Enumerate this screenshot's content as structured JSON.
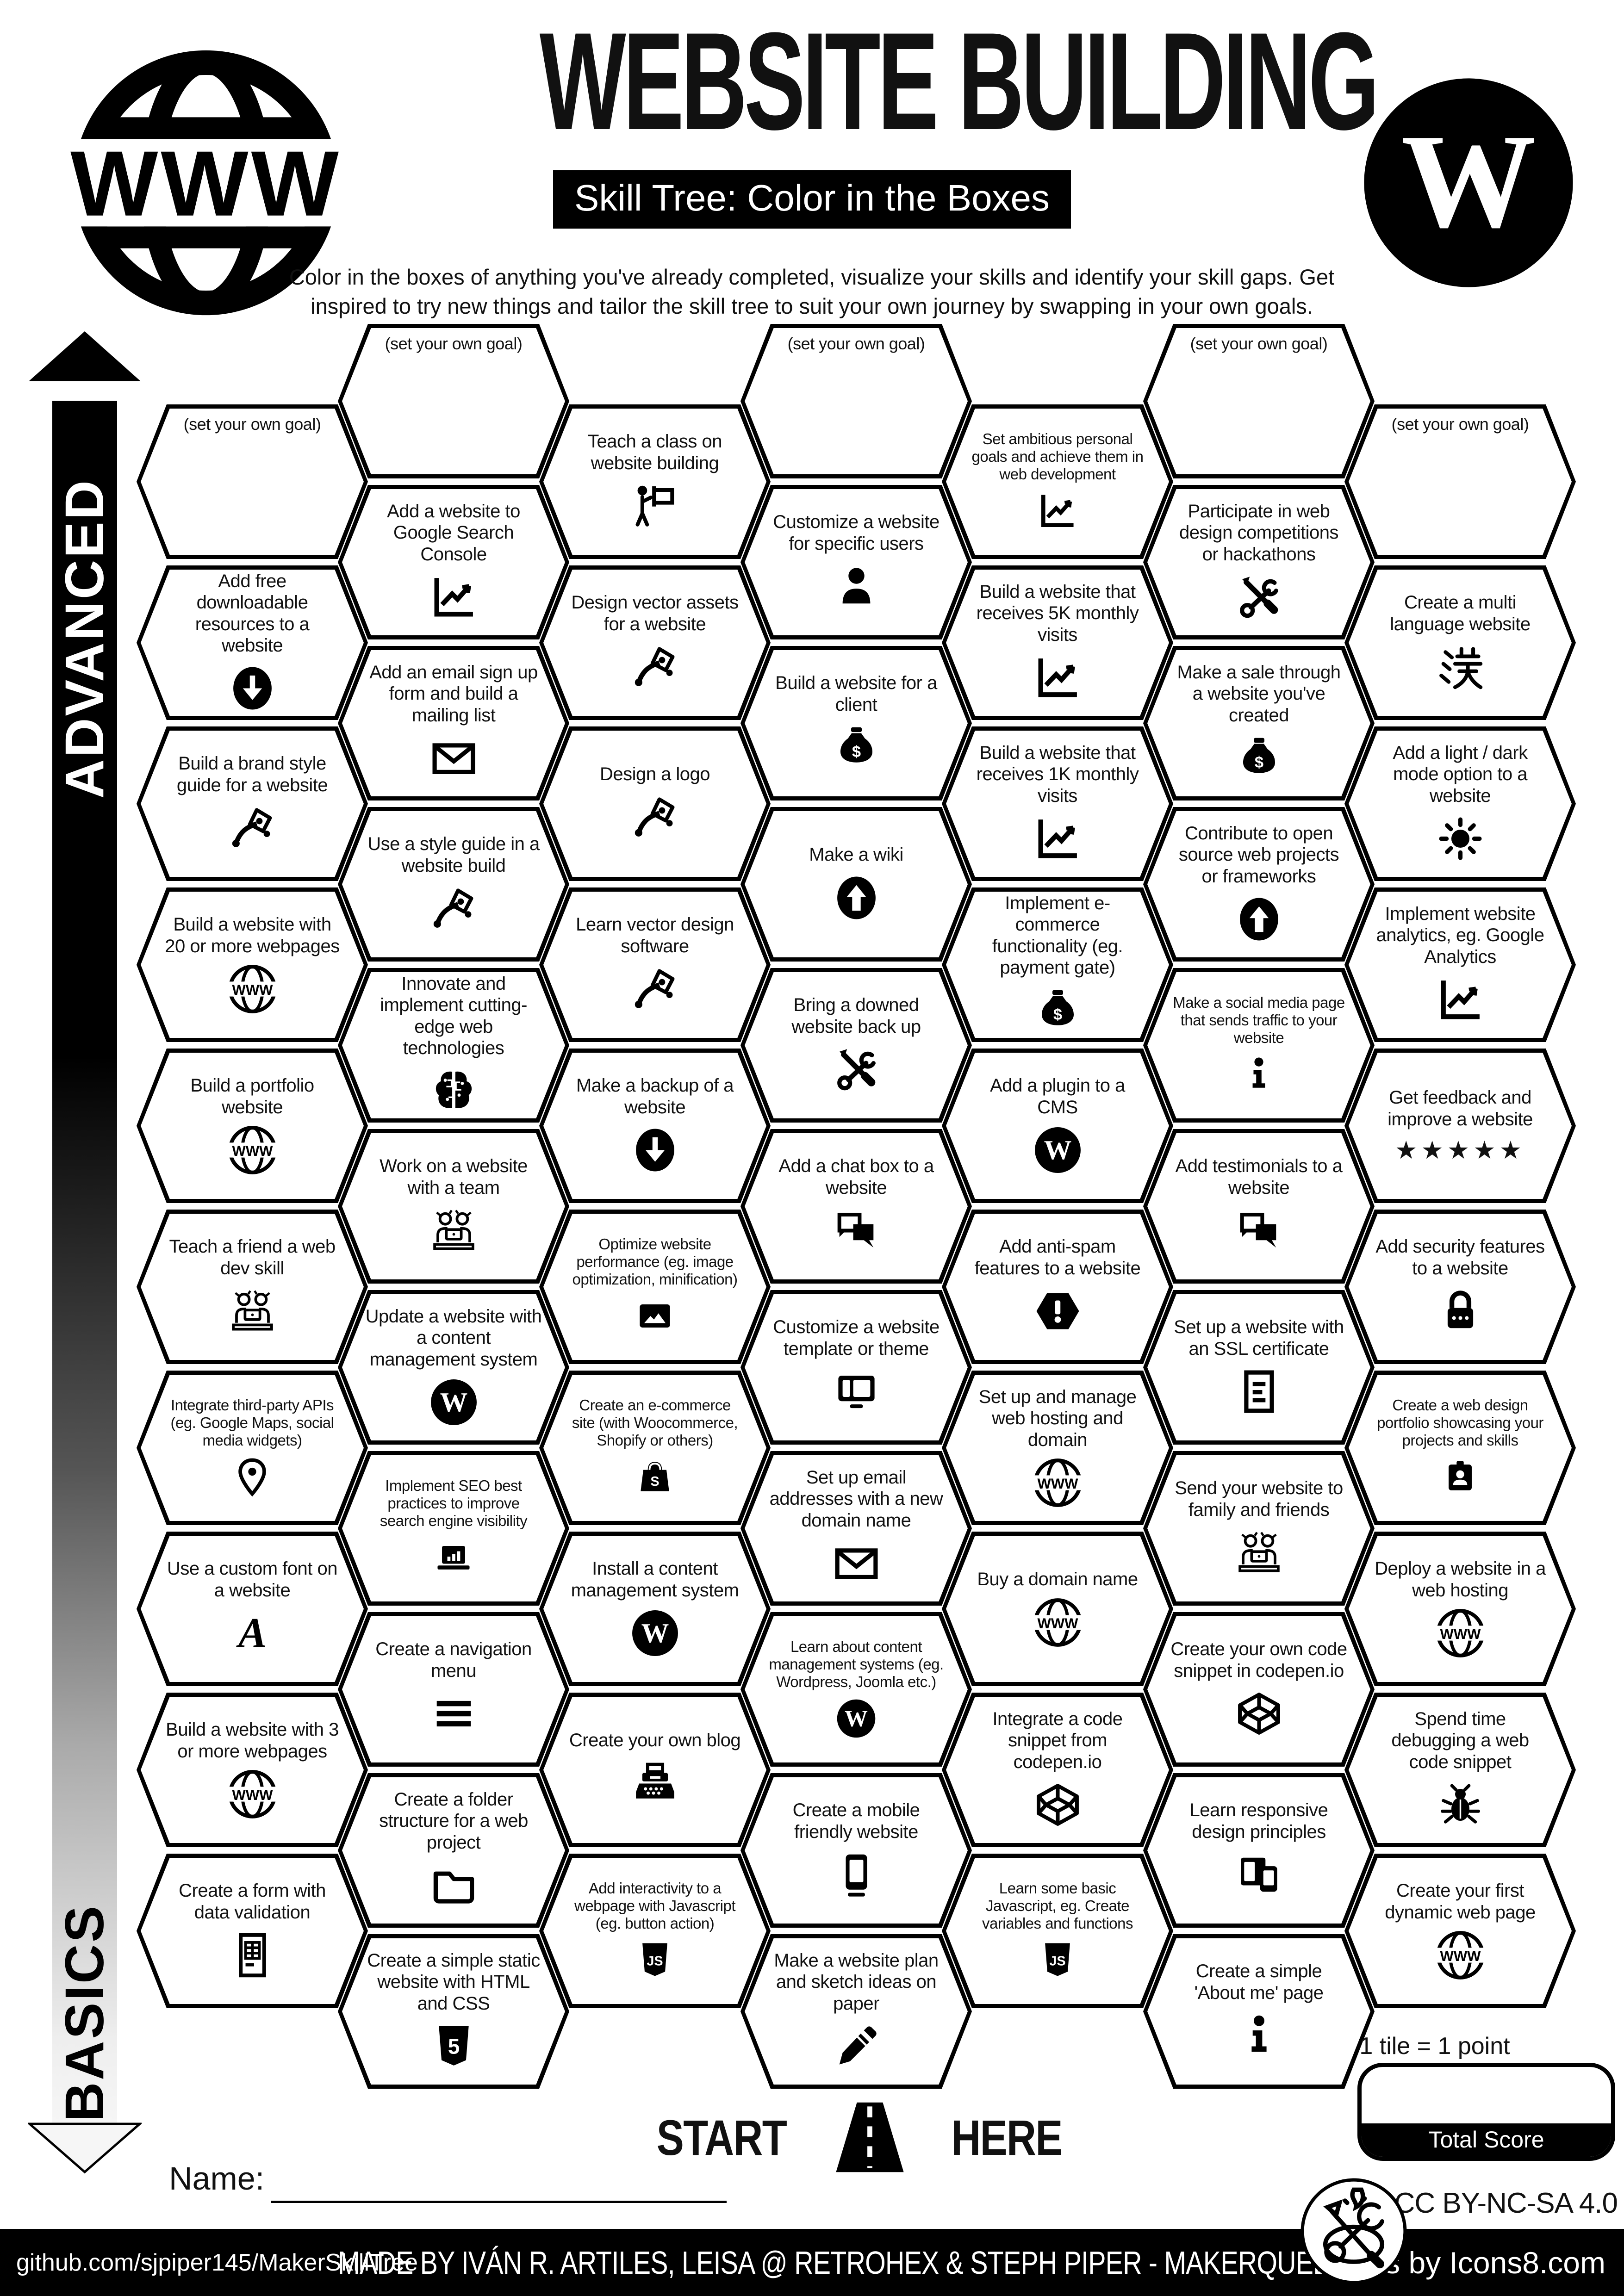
{
  "header": {
    "title": "WEBSITE BUILDING",
    "subtitle": "Skill Tree: Color in the Boxes",
    "description": "Color in the boxes of anything you've already completed, visualize your skills and identify your skill gaps.  Get inspired to try new things and tailor the skill tree to suit your own journey by swapping in your own goals.",
    "logo_left": "www-globe-logo",
    "logo_right": "wordpress-logo"
  },
  "axis": {
    "top": "ADVANCED",
    "bottom": "BASICS"
  },
  "start": {
    "left": "START",
    "right": "HERE"
  },
  "name_label": "Name:",
  "legend": {
    "tile_points": "1 tile = 1 point",
    "total_score": "Total Score"
  },
  "license": "CC BY-NC-SA 4.0",
  "footer": {
    "left": "github.com/sjpiper145/MakerSkillTree",
    "center": "MADE BY IVÁN R. ARTILES, LEISA @ RETROHEX  & STEPH PIPER  -  MAKERQUEEN AU",
    "right": "Icons by Icons8.com"
  },
  "hexes": [
    {
      "c": 0,
      "r": 0,
      "label": "(set your own goal)",
      "icon": "goal"
    },
    {
      "c": 0,
      "r": 1,
      "label": "Add free downloadable resources to a website",
      "icon": "download"
    },
    {
      "c": 0,
      "r": 2,
      "label": "Build a brand style guide for a website",
      "icon": "vector"
    },
    {
      "c": 0,
      "r": 3,
      "label": "Build a website with 20 or more webpages",
      "icon": "www"
    },
    {
      "c": 0,
      "r": 4,
      "label": "Build a portfolio website",
      "icon": "www"
    },
    {
      "c": 0,
      "r": 5,
      "label": "Teach a friend a web dev skill",
      "icon": "people"
    },
    {
      "c": 0,
      "r": 6,
      "label": "Integrate third-party APIs (eg. Google Maps, social media widgets)",
      "icon": "pin"
    },
    {
      "c": 0,
      "r": 7,
      "label": "Use a custom font on a website",
      "icon": "font"
    },
    {
      "c": 0,
      "r": 8,
      "label": "Build a website with 3 or more webpages",
      "icon": "www"
    },
    {
      "c": 0,
      "r": 9,
      "label": "Create a form with data validation",
      "icon": "form"
    },
    {
      "c": 1,
      "r": 0,
      "label": "(set your own goal)",
      "icon": "goal"
    },
    {
      "c": 1,
      "r": 1,
      "label": "Add a website to Google Search Console",
      "icon": "chart"
    },
    {
      "c": 1,
      "r": 2,
      "label": "Add an email sign up form and build a mailing list",
      "icon": "envelope"
    },
    {
      "c": 1,
      "r": 3,
      "label": "Use a style guide in a website build",
      "icon": "vector"
    },
    {
      "c": 1,
      "r": 4,
      "label": "Innovate and implement cutting-edge web technologies",
      "icon": "brain"
    },
    {
      "c": 1,
      "r": 5,
      "label": "Work on a website with a team",
      "icon": "people"
    },
    {
      "c": 1,
      "r": 6,
      "label": "Update a website with a content management system",
      "icon": "wordpress"
    },
    {
      "c": 1,
      "r": 7,
      "label": "Implement SEO best practices to improve search engine visibility",
      "icon": "laptopchart"
    },
    {
      "c": 1,
      "r": 8,
      "label": "Create a navigation menu",
      "icon": "menu"
    },
    {
      "c": 1,
      "r": 9,
      "label": "Create a folder structure for a web project",
      "icon": "folder"
    },
    {
      "c": 1,
      "r": 10,
      "label": "Create a simple static website with HTML and CSS",
      "icon": "html5"
    },
    {
      "c": 2,
      "r": 0,
      "label": "Teach a class on website building",
      "icon": "presenter"
    },
    {
      "c": 2,
      "r": 1,
      "label": "Design vector assets for a website",
      "icon": "vector"
    },
    {
      "c": 2,
      "r": 2,
      "label": "Design a logo",
      "icon": "vector"
    },
    {
      "c": 2,
      "r": 3,
      "label": "Learn vector design software",
      "icon": "vector"
    },
    {
      "c": 2,
      "r": 4,
      "label": "Make a backup of a website",
      "icon": "download"
    },
    {
      "c": 2,
      "r": 5,
      "label": "Optimize website performance (eg. image optimization, minification)",
      "icon": "image"
    },
    {
      "c": 2,
      "r": 6,
      "label": "Create an e-commerce site (with Woocommerce, Shopify or others)",
      "icon": "shopify"
    },
    {
      "c": 2,
      "r": 7,
      "label": "Install a content management system",
      "icon": "wordpress"
    },
    {
      "c": 2,
      "r": 8,
      "label": "Create your own blog",
      "icon": "typewriter"
    },
    {
      "c": 2,
      "r": 9,
      "label": "Add interactivity to a webpage with Javascript (eg. button action)",
      "icon": "js"
    },
    {
      "c": 3,
      "r": 0,
      "label": "(set your own goal)",
      "icon": "goal"
    },
    {
      "c": 3,
      "r": 1,
      "label": "Customize a website for specific users",
      "icon": "person"
    },
    {
      "c": 3,
      "r": 2,
      "label": "Build a website for a client",
      "icon": "moneybag"
    },
    {
      "c": 3,
      "r": 3,
      "label": "Make a wiki",
      "icon": "up"
    },
    {
      "c": 3,
      "r": 4,
      "label": "Bring a downed website back up",
      "icon": "tools"
    },
    {
      "c": 3,
      "r": 5,
      "label": "Add a chat box to a website",
      "icon": "chat"
    },
    {
      "c": 3,
      "r": 6,
      "label": "Customize a website template or theme",
      "icon": "screen"
    },
    {
      "c": 3,
      "r": 7,
      "label": "Set up email addresses with a new domain name",
      "icon": "envelope"
    },
    {
      "c": 3,
      "r": 8,
      "label": "Learn about content management systems (eg. Wordpress, Joomla etc.)",
      "icon": "wordpress"
    },
    {
      "c": 3,
      "r": 9,
      "label": "Create a mobile friendly website",
      "icon": "mobile"
    },
    {
      "c": 3,
      "r": 10,
      "label": "Make a website plan and sketch ideas on paper",
      "icon": "pencil"
    },
    {
      "c": 4,
      "r": 0,
      "label": "Set ambitious personal goals and achieve them in web development",
      "icon": "chart"
    },
    {
      "c": 4,
      "r": 1,
      "label": "Build a website that receives 5K monthly visits",
      "icon": "chart"
    },
    {
      "c": 4,
      "r": 2,
      "label": "Build a website that receives 1K monthly visits",
      "icon": "chart"
    },
    {
      "c": 4,
      "r": 3,
      "label": "Implement e-commerce functionality (eg. payment gate)",
      "icon": "moneybag"
    },
    {
      "c": 4,
      "r": 4,
      "label": "Add a plugin to a CMS",
      "icon": "wordpress"
    },
    {
      "c": 4,
      "r": 5,
      "label": "Add anti-spam features to a website",
      "icon": "warning"
    },
    {
      "c": 4,
      "r": 6,
      "label": "Set up and manage web hosting and domain",
      "icon": "www"
    },
    {
      "c": 4,
      "r": 7,
      "label": "Buy a domain name",
      "icon": "www"
    },
    {
      "c": 4,
      "r": 8,
      "label": "Integrate a code snippet from codepen.io",
      "icon": "codepen"
    },
    {
      "c": 4,
      "r": 9,
      "label": "Learn some basic Javascript, eg. Create variables and functions",
      "icon": "js"
    },
    {
      "c": 5,
      "r": 0,
      "label": "(set your own goal)",
      "icon": "goal"
    },
    {
      "c": 5,
      "r": 1,
      "label": "Participate in web design competitions or hackathons",
      "icon": "tools"
    },
    {
      "c": 5,
      "r": 2,
      "label": "Make a sale through a website you've created",
      "icon": "moneybag"
    },
    {
      "c": 5,
      "r": 3,
      "label": "Contribute to open source web projects or frameworks",
      "icon": "up"
    },
    {
      "c": 5,
      "r": 4,
      "label": "Make a social media page that sends traffic to your website",
      "icon": "info"
    },
    {
      "c": 5,
      "r": 5,
      "label": "Add testimonials to a website",
      "icon": "chat"
    },
    {
      "c": 5,
      "r": 6,
      "label": "Set up a website with an SSL certificate",
      "icon": "ssldoc"
    },
    {
      "c": 5,
      "r": 7,
      "label": "Send your website to family and friends",
      "icon": "people"
    },
    {
      "c": 5,
      "r": 8,
      "label": "Create your own code snippet in codepen.io",
      "icon": "codepen"
    },
    {
      "c": 5,
      "r": 9,
      "label": "Learn responsive design principles",
      "icon": "responsive"
    },
    {
      "c": 5,
      "r": 10,
      "label": "Create a simple 'About me' page",
      "icon": "info"
    },
    {
      "c": 6,
      "r": 0,
      "label": "(set your own goal)",
      "icon": "goal"
    },
    {
      "c": 6,
      "r": 1,
      "label": "Create a multi language website",
      "icon": "hanzi"
    },
    {
      "c": 6,
      "r": 2,
      "label": "Add a light / dark mode option to a website",
      "icon": "sun"
    },
    {
      "c": 6,
      "r": 3,
      "label": "Implement website analytics, eg. Google Analytics",
      "icon": "chart"
    },
    {
      "c": 6,
      "r": 4,
      "label": "Get feedback and improve a website",
      "icon": "stars"
    },
    {
      "c": 6,
      "r": 5,
      "label": "Add security features to a website",
      "icon": "lock"
    },
    {
      "c": 6,
      "r": 6,
      "label": "Create a web design portfolio showcasing your projects and skills",
      "icon": "badge"
    },
    {
      "c": 6,
      "r": 7,
      "label": "Deploy a website in a web hosting",
      "icon": "www"
    },
    {
      "c": 6,
      "r": 8,
      "label": "Spend time debugging a web code snippet",
      "icon": "bug"
    },
    {
      "c": 6,
      "r": 9,
      "label": "Create your first dynamic web page",
      "icon": "www"
    }
  ]
}
